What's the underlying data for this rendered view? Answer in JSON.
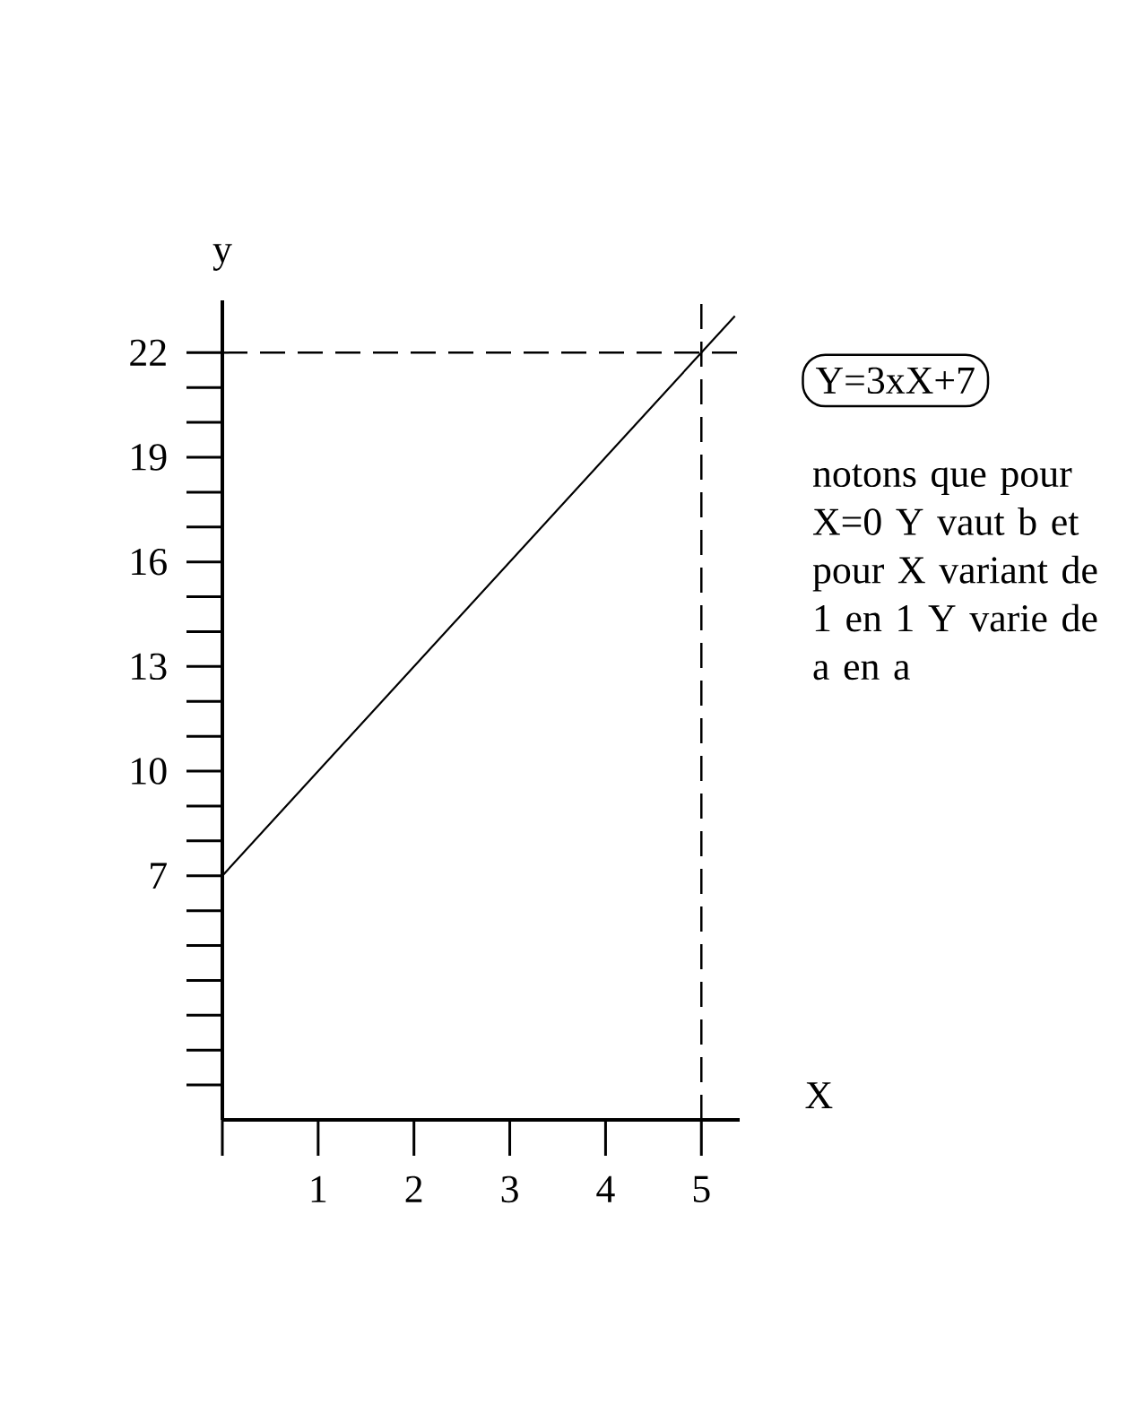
{
  "chart_data": {
    "type": "line",
    "xlabel": "X",
    "ylabel": "y",
    "x": [
      0,
      5,
      5.35
    ],
    "values": [
      7,
      22,
      23.05
    ],
    "color": "#000000",
    "xlim": [
      0,
      5.4
    ],
    "ylim": [
      0,
      23.5
    ],
    "xticks": [
      {
        "value": 0,
        "label": null
      },
      1,
      2,
      3,
      4,
      5
    ],
    "yticks": [
      7,
      10,
      13,
      16,
      19,
      22
    ],
    "ref_lines": [
      {
        "axis": "y",
        "value": 22,
        "line_style": "dashed"
      },
      {
        "axis": "x",
        "value": 5,
        "line_style": "dashed"
      }
    ],
    "annotations": [
      "Y=3xX+7",
      "notons que pour X=0 Y vaut b et pour X variant de 1 en 1 Y varie de a en a"
    ]
  }
}
